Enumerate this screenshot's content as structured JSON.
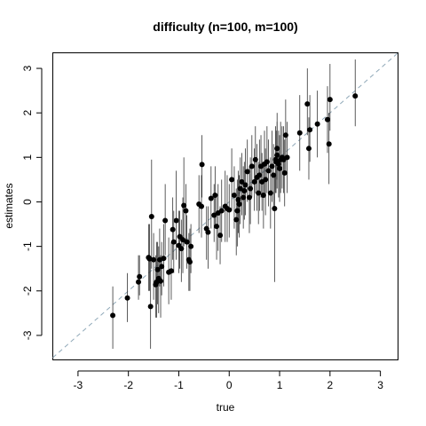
{
  "chart_data": {
    "type": "scatter",
    "title": "difficulty (n=100, m=100)",
    "xlabel": "true",
    "ylabel": "estimates",
    "xlim": [
      -3.5,
      3.35
    ],
    "ylim": [
      -3.55,
      3.35
    ],
    "xticks": [
      -3,
      -2,
      -1,
      0,
      1,
      2,
      3
    ],
    "yticks": [
      -3,
      -2,
      -1,
      0,
      1,
      2,
      3
    ],
    "xtick_labels": [
      "-3",
      "-2",
      "-1",
      "0",
      "1",
      "2",
      "3"
    ],
    "ytick_labels": [
      "-3",
      "-2",
      "-1",
      "0",
      "1",
      "2",
      "3"
    ],
    "grid": false,
    "legend": "none",
    "reference_line": {
      "slope": 1,
      "intercept": 0,
      "style": "dashed",
      "color": "#8fa8b8"
    },
    "colors": {
      "points": "#000000",
      "errorbars": "#333333"
    },
    "points": [
      {
        "x": -2.31,
        "y": -2.55,
        "lo": -3.3,
        "hi": -1.9
      },
      {
        "x": -2.02,
        "y": -2.16,
        "lo": -2.7,
        "hi": -1.6
      },
      {
        "x": -1.8,
        "y": -1.8,
        "lo": -2.2,
        "hi": -1.2
      },
      {
        "x": -1.78,
        "y": -1.68,
        "lo": -2.1,
        "hi": -1.2
      },
      {
        "x": -1.58,
        "y": -1.28,
        "lo": -2.0,
        "hi": -0.5
      },
      {
        "x": -1.56,
        "y": -2.35,
        "lo": -3.3,
        "hi": -1.3
      },
      {
        "x": -1.54,
        "y": -0.33,
        "lo": -1.5,
        "hi": 0.95
      },
      {
        "x": -1.5,
        "y": -1.3,
        "lo": -2.2,
        "hi": -0.7
      },
      {
        "x": -1.46,
        "y": -1.86,
        "lo": -2.6,
        "hi": -1.2
      },
      {
        "x": -1.44,
        "y": -1.8,
        "lo": -2.6,
        "hi": -0.9
      },
      {
        "x": -1.42,
        "y": -1.52,
        "lo": -2.3,
        "hi": -0.9
      },
      {
        "x": -1.4,
        "y": -1.72,
        "lo": -2.5,
        "hi": -1.0
      },
      {
        "x": -1.38,
        "y": -1.3,
        "lo": -1.9,
        "hi": -0.6
      },
      {
        "x": -1.36,
        "y": -1.78,
        "lo": -2.6,
        "hi": -1.2
      },
      {
        "x": -1.34,
        "y": -1.45,
        "lo": -2.1,
        "hi": -0.9
      },
      {
        "x": -1.3,
        "y": -1.27,
        "lo": -1.9,
        "hi": -0.5
      },
      {
        "x": -1.27,
        "y": -0.42,
        "lo": -1.2,
        "hi": 0.4
      },
      {
        "x": -1.2,
        "y": -1.58,
        "lo": -2.3,
        "hi": -0.8
      },
      {
        "x": -1.15,
        "y": -1.55,
        "lo": -2.2,
        "hi": -0.9
      },
      {
        "x": -1.12,
        "y": -0.62,
        "lo": -1.3,
        "hi": 0.1
      },
      {
        "x": -1.05,
        "y": -0.42,
        "lo": -1.3,
        "hi": 0.7
      },
      {
        "x": -1.0,
        "y": -0.98,
        "lo": -1.6,
        "hi": -0.2
      },
      {
        "x": -0.98,
        "y": -0.78,
        "lo": -1.5,
        "hi": -0.2
      },
      {
        "x": -0.95,
        "y": -1.05,
        "lo": -1.8,
        "hi": -0.4
      },
      {
        "x": -0.92,
        "y": -0.85,
        "lo": -1.6,
        "hi": 0.1
      },
      {
        "x": -0.9,
        "y": -0.08,
        "lo": -1.0,
        "hi": 1.0
      },
      {
        "x": -0.86,
        "y": -0.2,
        "lo": -0.9,
        "hi": 0.4
      },
      {
        "x": -0.84,
        "y": -0.9,
        "lo": -1.5,
        "hi": -0.3
      },
      {
        "x": -0.8,
        "y": -1.3,
        "lo": -2.0,
        "hi": -0.7
      },
      {
        "x": -0.78,
        "y": -1.35,
        "lo": -2.0,
        "hi": -0.6
      },
      {
        "x": -0.76,
        "y": -1.0,
        "lo": -1.6,
        "hi": -0.5
      },
      {
        "x": -0.6,
        "y": -0.05,
        "lo": -0.7,
        "hi": 0.6
      },
      {
        "x": -0.55,
        "y": -0.1,
        "lo": -0.8,
        "hi": 0.6
      },
      {
        "x": -0.54,
        "y": 0.84,
        "lo": 0.1,
        "hi": 1.5
      },
      {
        "x": -0.45,
        "y": -0.6,
        "lo": -1.3,
        "hi": -0.1
      },
      {
        "x": -0.42,
        "y": -0.68,
        "lo": -1.5,
        "hi": -0.1
      },
      {
        "x": -0.36,
        "y": 0.08,
        "lo": -0.6,
        "hi": 0.8
      },
      {
        "x": -0.3,
        "y": -0.3,
        "lo": -0.9,
        "hi": 0.4
      },
      {
        "x": -0.25,
        "y": -0.55,
        "lo": -1.3,
        "hi": 0.1
      },
      {
        "x": -0.22,
        "y": -0.25,
        "lo": -1.1,
        "hi": 0.4
      },
      {
        "x": -0.18,
        "y": -0.75,
        "lo": -1.4,
        "hi": -0.1
      },
      {
        "x": -0.15,
        "y": -0.2,
        "lo": -0.9,
        "hi": 0.5
      },
      {
        "x": -0.08,
        "y": -0.1,
        "lo": -0.9,
        "hi": 0.7
      },
      {
        "x": -0.04,
        "y": -0.15,
        "lo": -0.9,
        "hi": 0.6
      },
      {
        "x": 0.0,
        "y": -0.18,
        "lo": -0.8,
        "hi": 0.4
      },
      {
        "x": 0.05,
        "y": 0.5,
        "lo": -0.2,
        "hi": 1.2
      },
      {
        "x": 0.1,
        "y": 0.15,
        "lo": -0.6,
        "hi": 0.8
      },
      {
        "x": 0.14,
        "y": -0.4,
        "lo": -1.2,
        "hi": 0.3
      },
      {
        "x": 0.16,
        "y": -0.2,
        "lo": -1.0,
        "hi": 0.5
      },
      {
        "x": 0.18,
        "y": 0.05,
        "lo": -0.7,
        "hi": 0.7
      },
      {
        "x": 0.22,
        "y": 0.3,
        "lo": -0.5,
        "hi": 1.0
      },
      {
        "x": 0.25,
        "y": 0.45,
        "lo": -0.3,
        "hi": 1.1
      },
      {
        "x": 0.28,
        "y": 0.1,
        "lo": -0.6,
        "hi": 0.8
      },
      {
        "x": 0.3,
        "y": 0.25,
        "lo": -0.4,
        "hi": 0.9
      },
      {
        "x": 0.32,
        "y": 0.38,
        "lo": -0.3,
        "hi": 1.2
      },
      {
        "x": 0.36,
        "y": 0.68,
        "lo": 0.0,
        "hi": 1.4
      },
      {
        "x": 0.4,
        "y": 0.1,
        "lo": -0.7,
        "hi": 0.8
      },
      {
        "x": 0.45,
        "y": 0.8,
        "lo": 0.1,
        "hi": 1.5
      },
      {
        "x": 0.5,
        "y": 0.45,
        "lo": -0.2,
        "hi": 1.2
      },
      {
        "x": 0.52,
        "y": 0.95,
        "lo": 0.2,
        "hi": 1.7
      },
      {
        "x": 0.55,
        "y": 0.55,
        "lo": -0.2,
        "hi": 1.3
      },
      {
        "x": 0.58,
        "y": 0.2,
        "lo": -0.5,
        "hi": 0.9
      },
      {
        "x": 0.6,
        "y": 0.6,
        "lo": -0.2,
        "hi": 1.4
      },
      {
        "x": 0.63,
        "y": 0.8,
        "lo": 0.1,
        "hi": 1.5
      },
      {
        "x": 0.65,
        "y": 0.45,
        "lo": -0.2,
        "hi": 1.1
      },
      {
        "x": 0.68,
        "y": 0.15,
        "lo": -0.6,
        "hi": 0.9
      },
      {
        "x": 0.7,
        "y": 0.85,
        "lo": 0.1,
        "hi": 1.6
      },
      {
        "x": 0.72,
        "y": 0.5,
        "lo": -0.3,
        "hi": 1.2
      },
      {
        "x": 0.75,
        "y": 0.9,
        "lo": 0.2,
        "hi": 1.7
      },
      {
        "x": 0.78,
        "y": 0.7,
        "lo": -0.1,
        "hi": 1.4
      },
      {
        "x": 0.82,
        "y": 0.2,
        "lo": -0.6,
        "hi": 1.0
      },
      {
        "x": 0.85,
        "y": 0.8,
        "lo": 0.0,
        "hi": 1.6
      },
      {
        "x": 0.88,
        "y": 0.6,
        "lo": -0.2,
        "hi": 1.3
      },
      {
        "x": 0.9,
        "y": -0.15,
        "lo": -1.8,
        "hi": 0.6
      },
      {
        "x": 0.92,
        "y": 0.95,
        "lo": 0.2,
        "hi": 1.7
      },
      {
        "x": 0.95,
        "y": 1.2,
        "lo": 0.5,
        "hi": 2.0
      },
      {
        "x": 0.98,
        "y": 0.85,
        "lo": 0.1,
        "hi": 1.6
      },
      {
        "x": 1.0,
        "y": 0.75,
        "lo": 0.0,
        "hi": 1.5
      },
      {
        "x": 1.02,
        "y": 0.95,
        "lo": 0.2,
        "hi": 1.8
      },
      {
        "x": 1.05,
        "y": 1.0,
        "lo": 0.3,
        "hi": 1.7
      },
      {
        "x": 1.08,
        "y": 0.95,
        "lo": 0.2,
        "hi": 1.7
      },
      {
        "x": 1.1,
        "y": 0.65,
        "lo": -0.1,
        "hi": 1.4
      },
      {
        "x": 1.12,
        "y": 1.5,
        "lo": 0.7,
        "hi": 2.3
      },
      {
        "x": 1.15,
        "y": 1.0,
        "lo": 0.2,
        "hi": 1.8
      },
      {
        "x": 0.95,
        "y": 1.05,
        "lo": 0.3,
        "hi": 1.8
      },
      {
        "x": 0.93,
        "y": 0.9,
        "lo": 0.2,
        "hi": 1.6
      },
      {
        "x": 1.4,
        "y": 1.55,
        "lo": 0.7,
        "hi": 2.4
      },
      {
        "x": 1.55,
        "y": 2.2,
        "lo": 1.5,
        "hi": 3.0
      },
      {
        "x": 1.58,
        "y": 1.2,
        "lo": 0.5,
        "hi": 1.9
      },
      {
        "x": 1.6,
        "y": 1.62,
        "lo": 0.9,
        "hi": 2.4
      },
      {
        "x": 1.75,
        "y": 1.75,
        "lo": 1.0,
        "hi": 2.5
      },
      {
        "x": 1.95,
        "y": 1.85,
        "lo": 1.1,
        "hi": 2.6
      },
      {
        "x": 1.98,
        "y": 1.3,
        "lo": 0.4,
        "hi": 2.0
      },
      {
        "x": 2.0,
        "y": 2.3,
        "lo": 1.6,
        "hi": 3.1
      },
      {
        "x": 2.5,
        "y": 2.38,
        "lo": 1.7,
        "hi": 3.2
      },
      {
        "x": -1.6,
        "y": -1.25,
        "lo": -2.0,
        "hi": -0.5
      },
      {
        "x": -0.28,
        "y": 0.15,
        "lo": -0.6,
        "hi": 0.8
      },
      {
        "x": 0.2,
        "y": -0.05,
        "lo": -0.8,
        "hi": 0.6
      },
      {
        "x": 0.42,
        "y": 0.3,
        "lo": -0.5,
        "hi": 1.0
      },
      {
        "x": -1.1,
        "y": -0.9,
        "lo": -1.6,
        "hi": -0.2
      }
    ]
  }
}
